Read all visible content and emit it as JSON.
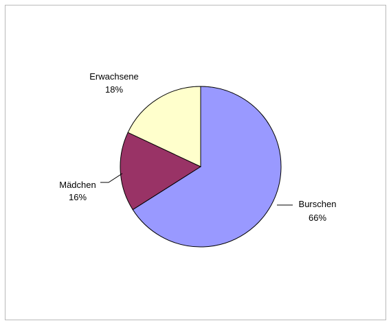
{
  "chart_data": {
    "type": "pie",
    "slices": [
      {
        "label": "Burschen",
        "value": 66,
        "value_label": "66%",
        "color": "#9999ff"
      },
      {
        "label": "Mädchen",
        "value": 16,
        "value_label": "16%",
        "color": "#993366"
      },
      {
        "label": "Erwachsene",
        "value": 18,
        "value_label": "18%",
        "color": "#ffffcc"
      }
    ],
    "start_angle_deg": 0,
    "direction": "clockwise",
    "title": "",
    "legend": "none"
  }
}
